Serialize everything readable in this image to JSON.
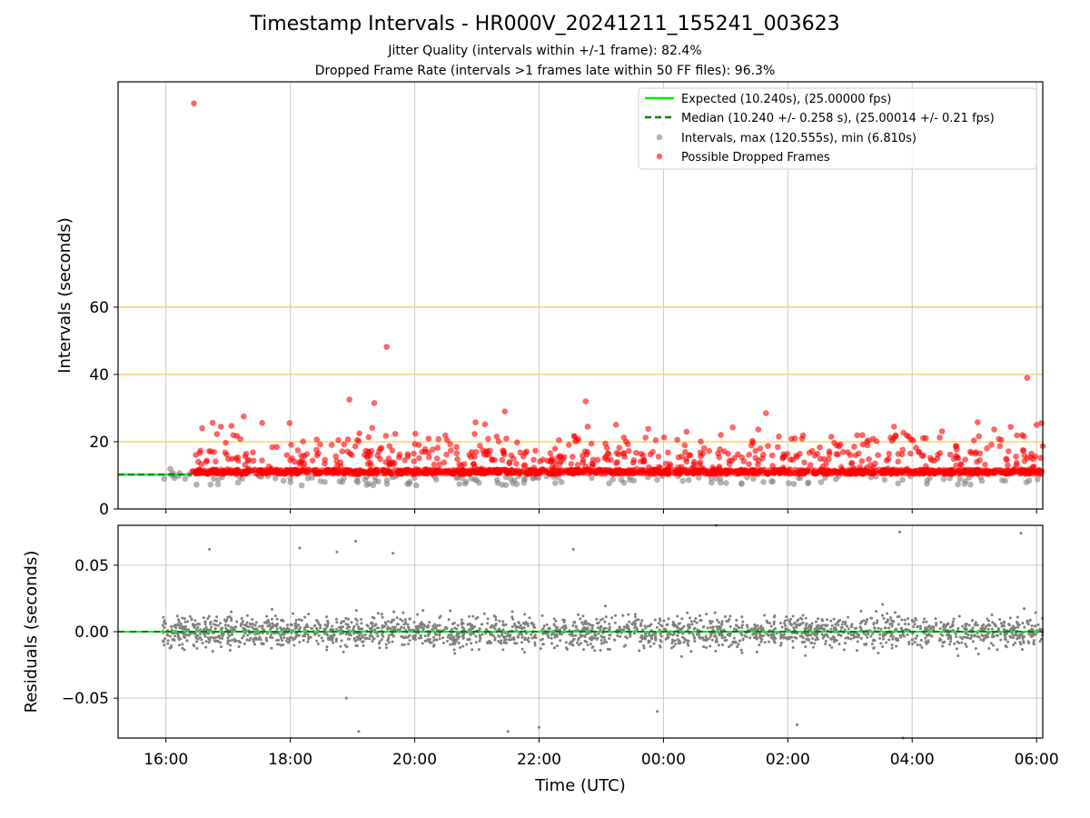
{
  "title": "Timestamp Intervals - HR000V_20241211_155241_003623",
  "subtitle_1": "Jitter Quality (intervals within +/-1 frame): 82.4%",
  "subtitle_2": "Dropped Frame Rate (intervals >1 frames late within 50 FF files): 96.3%",
  "colors": {
    "expected": "#00ee00",
    "median": "#008000",
    "intervals": "#808080",
    "dropped": "#ff0000",
    "threshold": "#ffc850",
    "grid": "#c8c8c8"
  },
  "chart_data": [
    {
      "type": "scatter",
      "ylabel": "Intervals (seconds)",
      "x_unit": "hours since 16:00 UTC",
      "xlim": [
        -0.77,
        14.1
      ],
      "ylim": [
        0,
        127
      ],
      "yticks": [
        0,
        20,
        40,
        60
      ],
      "ytick_labels": [
        "0",
        "20",
        "40",
        "60"
      ],
      "xticks": [
        0,
        2,
        4,
        6,
        8,
        10,
        12,
        14
      ],
      "grid": true,
      "threshold_lines": [
        20.0,
        40.0,
        60.0
      ],
      "expected_interval": 10.24,
      "median_interval": 10.24,
      "legend": {
        "placement": "top-right",
        "entries": [
          {
            "label": "Expected (10.240s), (25.00000 fps)",
            "style": "solid-line",
            "color": "#00ee00"
          },
          {
            "label": "Median (10.240 +/- 0.258 s), (25.00014 +/- 0.21 fps)",
            "style": "dashed-line",
            "color": "#008000"
          },
          {
            "label": "Intervals, max (120.555s), min (6.810s)",
            "style": "dot",
            "color": "#808080"
          },
          {
            "label": "Possible Dropped Frames",
            "style": "dot",
            "color": "#ff0000"
          }
        ]
      },
      "series": [
        {
          "name": "Possible Dropped Frames",
          "notable_points": [
            {
              "x": 0.45,
              "y": 120.555
            },
            {
              "x": 3.55,
              "y": 48.2
            },
            {
              "x": 13.85,
              "y": 39.0
            },
            {
              "x": 1.25,
              "y": 27.5
            },
            {
              "x": 2.95,
              "y": 32.5
            },
            {
              "x": 3.35,
              "y": 31.5
            },
            {
              "x": 5.45,
              "y": 29.0
            },
            {
              "x": 6.75,
              "y": 32.0
            },
            {
              "x": 9.65,
              "y": 28.5
            },
            {
              "x": 14.0,
              "y": 25.0
            }
          ],
          "typical_range": [
            10.5,
            25.0
          ]
        },
        {
          "name": "Intervals, max (120.555s), min (6.810s)",
          "min": 6.81,
          "max": 120.555,
          "baseline": 10.24
        }
      ]
    },
    {
      "type": "scatter",
      "ylabel": "Residuals (seconds)",
      "xlabel": "Time (UTC)",
      "xlim": [
        -0.77,
        14.1
      ],
      "ylim": [
        -0.08,
        0.08
      ],
      "yticks": [
        -0.05,
        0.0,
        0.05
      ],
      "ytick_labels": [
        "−0.05",
        "0.00",
        "0.05"
      ],
      "xticks": [
        0,
        2,
        4,
        6,
        8,
        10,
        12,
        14
      ],
      "xtick_labels": [
        "16:00",
        "18:00",
        "20:00",
        "22:00",
        "00:00",
        "02:00",
        "04:00",
        "06:00"
      ],
      "grid": true,
      "zero_line": 0.0,
      "series": [
        {
          "name": "Residuals",
          "notable_points": [
            {
              "x": 0.7,
              "y": 0.062
            },
            {
              "x": 2.15,
              "y": 0.063
            },
            {
              "x": 2.75,
              "y": 0.06
            },
            {
              "x": 3.05,
              "y": 0.068
            },
            {
              "x": 3.65,
              "y": 0.059
            },
            {
              "x": 6.55,
              "y": 0.062
            },
            {
              "x": 8.85,
              "y": 0.08
            },
            {
              "x": 11.8,
              "y": 0.075
            },
            {
              "x": 11.85,
              "y": -0.08
            },
            {
              "x": 13.75,
              "y": 0.074
            },
            {
              "x": 2.9,
              "y": -0.05
            },
            {
              "x": 3.1,
              "y": -0.075
            },
            {
              "x": 5.5,
              "y": -0.075
            },
            {
              "x": 6.0,
              "y": -0.072
            },
            {
              "x": 7.9,
              "y": -0.06
            },
            {
              "x": 10.15,
              "y": -0.07
            }
          ],
          "typical_std": 0.012
        }
      ]
    }
  ]
}
